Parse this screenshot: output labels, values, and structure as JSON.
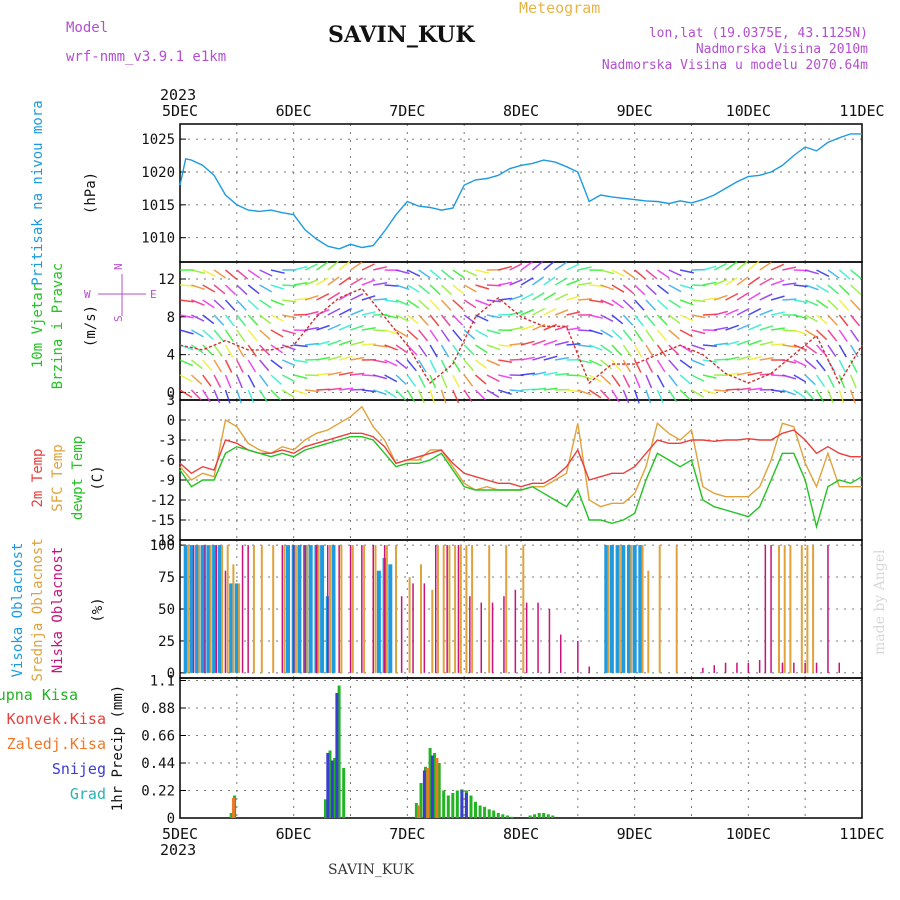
{
  "header": {
    "model_label": "Model",
    "model_name": "wrf-nmm_v3.9.1  e1km",
    "station": "SAVIN_KUK",
    "kind": "Meteogram",
    "lonlat": "lon,lat (19.0375E, 43.1125N)",
    "elevation": "Nadmorska Visina 2010m",
    "model_elevation": "Nadmorska Visina u modelu 2070.64m",
    "footer_station": "SAVIN_KUK",
    "watermark": "made by Angel"
  },
  "colors": {
    "pressure": "#1e9be0",
    "temp2m": "#e8403c",
    "sfc": "#e0a23c",
    "dewpt": "#22c322",
    "high_cloud": "#1e9be0",
    "mid_cloud": "#e0a23c",
    "low_cloud": "#c8127c",
    "total_precip": "#22b422",
    "conv_precip": "#e8403c",
    "frozen_precip": "#f07828",
    "snow": "#3c3cd2",
    "hail": "#28b4b4",
    "grid": "#777777",
    "header_purple": "#b44fd0",
    "header_gold": "#e8b44a"
  },
  "chart_data": [
    {
      "id": "pressure",
      "type": "line",
      "ylabel_lines": [
        "Pritisak na nivou mora",
        "(hPa)"
      ],
      "x_ticks": [
        "5DEC",
        "6DEC",
        "7DEC",
        "8DEC",
        "9DEC",
        "10DEC",
        "11DEC"
      ],
      "top_year": "2023",
      "bottom_year": "2023",
      "yticks": [
        1010,
        1015,
        1020,
        1025
      ],
      "ylim": [
        1006.3,
        1027.3
      ],
      "xlim_days": [
        0,
        6
      ],
      "series": [
        {
          "x": [
            0,
            0.05,
            0.1,
            0.2,
            0.3,
            0.4,
            0.5,
            0.6,
            0.7,
            0.8,
            0.9,
            1.0,
            1.1,
            1.2,
            1.3,
            1.4,
            1.5,
            1.6,
            1.7,
            1.8,
            1.9,
            2.0,
            2.1,
            2.2,
            2.3,
            2.4,
            2.5,
            2.6,
            2.7,
            2.8,
            2.9,
            3.0,
            3.1,
            3.2,
            3.3,
            3.4,
            3.5,
            3.6,
            3.7,
            3.8,
            3.9,
            4.0,
            4.1,
            4.2,
            4.3,
            4.4,
            4.5,
            4.6,
            4.7,
            4.8,
            4.9,
            5.0,
            5.1,
            5.2,
            5.3,
            5.4,
            5.5,
            5.6,
            5.7,
            5.8,
            5.9,
            6.0
          ],
          "y": [
            1018,
            1022,
            1021.8,
            1021,
            1019.5,
            1016.5,
            1015,
            1014.2,
            1014,
            1014.2,
            1013.8,
            1013.5,
            1011.2,
            1009.8,
            1008.7,
            1008.3,
            1009,
            1008.5,
            1008.8,
            1011,
            1013.5,
            1015.5,
            1014.8,
            1014.6,
            1014.2,
            1014.5,
            1018,
            1018.8,
            1019,
            1019.5,
            1020.5,
            1021,
            1021.3,
            1021.8,
            1021.5,
            1020.8,
            1020,
            1015.5,
            1016.5,
            1016.2,
            1016,
            1015.8,
            1015.6,
            1015.5,
            1015.2,
            1015.6,
            1015.3,
            1015.8,
            1016.5,
            1017.5,
            1018.5,
            1019.3,
            1019.5,
            1020,
            1021,
            1022.5,
            1023.8,
            1023.2,
            1024.5,
            1025.2,
            1025.8,
            1025.8
          ]
        }
      ]
    },
    {
      "id": "wind",
      "type": "line",
      "ylabel_lines": [
        "10m Vjetar",
        "Brzina i Pravac",
        "(m/s)"
      ],
      "compass": {
        "n": "N",
        "s": "S",
        "w": "W",
        "e": "E"
      },
      "yticks": [
        0,
        4,
        8,
        12
      ],
      "ylim": [
        -0.8,
        13.8
      ],
      "xlim_days": [
        0,
        6
      ],
      "series": [
        {
          "name": "",
          "x": [
            0,
            0.2,
            0.4,
            0.6,
            0.8,
            1.0,
            1.2,
            1.4,
            1.6,
            1.8,
            2.0,
            2.2,
            2.4,
            2.6,
            2.8,
            3.0,
            3.2,
            3.4,
            3.6,
            3.8,
            4.0,
            4.2,
            4.4,
            4.6,
            4.8,
            5.0,
            5.2,
            5.4,
            5.6,
            5.8,
            6.0
          ],
          "y": [
            5,
            4.5,
            5.5,
            4.5,
            4.5,
            5,
            8,
            10,
            11,
            8,
            5,
            1,
            3,
            8,
            10,
            8,
            7,
            7,
            1,
            3,
            3,
            4,
            5,
            4,
            2,
            1,
            2,
            4,
            6,
            1,
            5
          ]
        }
      ]
    },
    {
      "id": "temperature",
      "type": "line",
      "ylabel_lines": [
        "2m Temp",
        "SFC Temp",
        "dewpt Temp",
        "(C)"
      ],
      "yticks": [
        3,
        0,
        -3,
        -6,
        -9,
        -12,
        -15,
        -18
      ],
      "ylim": [
        -18,
        3
      ],
      "xlim_days": [
        0,
        6
      ],
      "series": [
        {
          "name": "2m Temp",
          "x": [
            0,
            0.1,
            0.2,
            0.3,
            0.4,
            0.5,
            0.6,
            0.7,
            0.8,
            0.9,
            1.0,
            1.1,
            1.2,
            1.3,
            1.4,
            1.5,
            1.6,
            1.7,
            1.8,
            1.9,
            2.0,
            2.1,
            2.2,
            2.3,
            2.4,
            2.5,
            2.6,
            2.7,
            2.8,
            2.9,
            3.0,
            3.1,
            3.2,
            3.3,
            3.4,
            3.5,
            3.6,
            3.7,
            3.8,
            3.9,
            4.0,
            4.1,
            4.2,
            4.3,
            4.4,
            4.5,
            4.6,
            4.7,
            4.8,
            4.9,
            5.0,
            5.1,
            5.2,
            5.3,
            5.4,
            5.5,
            5.6,
            5.7,
            5.8,
            5.9,
            6.0
          ],
          "y": [
            -6.5,
            -8,
            -7,
            -7.5,
            -3,
            -3.5,
            -4.5,
            -5,
            -5,
            -4.5,
            -5,
            -4,
            -3.5,
            -3,
            -2.5,
            -2,
            -2,
            -2.5,
            -4,
            -6.5,
            -6,
            -5.5,
            -5,
            -4.5,
            -6.5,
            -8,
            -8.5,
            -9,
            -9.5,
            -9.5,
            -10,
            -9.5,
            -9.5,
            -8.5,
            -7,
            -4.5,
            -9,
            -8.5,
            -8,
            -8,
            -7,
            -5,
            -3,
            -3.5,
            -3.5,
            -3,
            -3,
            -3.2,
            -3,
            -3,
            -2.8,
            -3,
            -3,
            -2,
            -1.5,
            -3,
            -5,
            -4,
            -5,
            -5.5,
            -5.5
          ]
        },
        {
          "name": "SFC Temp",
          "x": [
            0,
            0.1,
            0.2,
            0.3,
            0.4,
            0.5,
            0.6,
            0.7,
            0.8,
            0.9,
            1.0,
            1.1,
            1.2,
            1.3,
            1.4,
            1.5,
            1.6,
            1.7,
            1.8,
            1.9,
            2.0,
            2.1,
            2.2,
            2.3,
            2.4,
            2.5,
            2.6,
            2.7,
            2.8,
            2.9,
            3.0,
            3.1,
            3.2,
            3.3,
            3.4,
            3.5,
            3.6,
            3.7,
            3.8,
            3.9,
            4.0,
            4.1,
            4.2,
            4.3,
            4.4,
            4.5,
            4.6,
            4.7,
            4.8,
            4.9,
            5.0,
            5.1,
            5.2,
            5.3,
            5.4,
            5.5,
            5.6,
            5.7,
            5.8,
            5.9,
            6.0
          ],
          "y": [
            -7,
            -9,
            -8,
            -8.5,
            0,
            -1,
            -3.5,
            -4.5,
            -5,
            -4,
            -4.5,
            -3,
            -2,
            -1.5,
            -0.5,
            0.5,
            2,
            -1,
            -3,
            -6.5,
            -6,
            -6,
            -4.5,
            -4.5,
            -7,
            -9.5,
            -10.5,
            -10,
            -10.5,
            -10.5,
            -10.5,
            -10,
            -10,
            -9,
            -8,
            -0.5,
            -12,
            -13,
            -12.5,
            -12.5,
            -11,
            -7,
            -0.5,
            -2,
            -3,
            -1.5,
            -10,
            -11,
            -11.5,
            -11.5,
            -11.5,
            -10,
            -6,
            -0.5,
            -1,
            -6.5,
            -10,
            -5,
            -10,
            -10,
            -10
          ]
        },
        {
          "name": "dewpt Temp",
          "x": [
            0,
            0.1,
            0.2,
            0.3,
            0.4,
            0.5,
            0.6,
            0.7,
            0.8,
            0.9,
            1.0,
            1.1,
            1.2,
            1.3,
            1.4,
            1.5,
            1.6,
            1.7,
            1.8,
            1.9,
            2.0,
            2.1,
            2.2,
            2.3,
            2.4,
            2.5,
            2.6,
            2.7,
            2.8,
            2.9,
            3.0,
            3.1,
            3.2,
            3.3,
            3.4,
            3.5,
            3.6,
            3.7,
            3.8,
            3.9,
            4.0,
            4.1,
            4.2,
            4.3,
            4.4,
            4.5,
            4.6,
            4.7,
            4.8,
            4.9,
            5.0,
            5.1,
            5.2,
            5.3,
            5.4,
            5.5,
            5.6,
            5.7,
            5.8,
            5.9,
            6.0
          ],
          "y": [
            -7.5,
            -10,
            -9,
            -9,
            -5,
            -4,
            -4.5,
            -5,
            -5.5,
            -5,
            -5.5,
            -4.5,
            -4,
            -3.5,
            -3,
            -2.5,
            -2.5,
            -3,
            -5,
            -7,
            -6.5,
            -6.5,
            -6,
            -5,
            -7.5,
            -10,
            -10.5,
            -10.5,
            -10.5,
            -10.5,
            -10.5,
            -10,
            -11,
            -12,
            -13,
            -10.5,
            -15,
            -15,
            -15.5,
            -15,
            -14,
            -9,
            -5,
            -6,
            -7,
            -6,
            -12,
            -13,
            -13.5,
            -14,
            -14.5,
            -13,
            -9,
            -5,
            -5,
            -9,
            -16,
            -10,
            -9,
            -9.5,
            -8.5
          ]
        }
      ]
    },
    {
      "id": "cloud",
      "type": "bar",
      "ylabel_lines": [
        "Visoka Oblacnost",
        "Srednja Oblacnost",
        "Niska Oblacnost",
        "(%)"
      ],
      "yticks": [
        0,
        25,
        50,
        75,
        100
      ],
      "ylim": [
        -4,
        104
      ],
      "xlim_days": [
        0,
        6
      ],
      "series": [
        {
          "name": "Visoka Oblacnost",
          "x": [
            0.05,
            0.1,
            0.15,
            0.2,
            0.25,
            0.3,
            0.35,
            0.45,
            0.5,
            0.95,
            1.0,
            1.05,
            1.1,
            1.15,
            1.2,
            1.25,
            1.3,
            1.35,
            1.75,
            1.8,
            1.85,
            3.75,
            3.8,
            3.85,
            3.9,
            3.95,
            4.0,
            4.05
          ],
          "y": [
            100,
            100,
            100,
            100,
            100,
            100,
            100,
            70,
            70,
            100,
            100,
            100,
            100,
            100,
            100,
            100,
            60,
            100,
            80,
            90,
            85,
            100,
            100,
            100,
            100,
            100,
            100,
            100
          ]
        },
        {
          "name": "Srednja Oblacnost",
          "x": [
            0.07,
            0.17,
            0.27,
            0.37,
            0.42,
            0.47,
            0.52,
            0.65,
            0.72,
            0.82,
            0.92,
            1.02,
            1.12,
            1.22,
            1.32,
            1.42,
            1.52,
            1.62,
            1.72,
            1.82,
            1.9,
            2.02,
            2.12,
            2.22,
            2.27,
            2.32,
            2.37,
            2.42,
            2.47,
            2.52,
            2.57,
            2.72,
            2.87,
            3.02,
            3.77,
            3.87,
            3.97,
            4.07,
            4.12,
            4.22,
            4.37,
            5.27,
            5.32,
            5.37,
            5.47,
            5.52,
            5.57
          ],
          "y": [
            100,
            100,
            100,
            100,
            100,
            85,
            70,
            100,
            100,
            100,
            100,
            100,
            100,
            100,
            100,
            100,
            100,
            100,
            100,
            100,
            100,
            75,
            85,
            65,
            100,
            100,
            100,
            100,
            100,
            100,
            100,
            100,
            100,
            100,
            100,
            100,
            100,
            100,
            80,
            100,
            100,
            100,
            100,
            100,
            100,
            100,
            100
          ]
        },
        {
          "name": "Niska Oblacnost",
          "x": [
            0.12,
            0.22,
            0.32,
            0.4,
            0.55,
            0.6,
            0.9,
            1.0,
            1.1,
            1.2,
            1.3,
            1.4,
            1.5,
            1.6,
            1.7,
            1.8,
            1.95,
            2.05,
            2.15,
            2.25,
            2.35,
            2.45,
            2.55,
            2.65,
            2.75,
            2.85,
            2.95,
            3.05,
            3.15,
            3.25,
            3.35,
            3.5,
            3.6,
            4.6,
            4.7,
            4.8,
            4.9,
            5.0,
            5.1,
            5.15,
            5.2,
            5.3,
            5.4,
            5.5,
            5.6,
            5.7,
            5.8
          ],
          "y": [
            100,
            100,
            100,
            80,
            100,
            100,
            100,
            100,
            100,
            100,
            100,
            100,
            100,
            100,
            100,
            100,
            60,
            70,
            70,
            100,
            100,
            100,
            60,
            55,
            55,
            60,
            65,
            55,
            55,
            50,
            30,
            25,
            5,
            4,
            6,
            8,
            8,
            8,
            10,
            100,
            100,
            8,
            8,
            8,
            8,
            100,
            8
          ]
        }
      ]
    },
    {
      "id": "precip",
      "type": "bar",
      "ylabel_lines": [
        "1hr Precip (mm)"
      ],
      "legend_entries": [
        "Ukupna Kisa",
        "Konvek.Kisa",
        "Zaledj.Kisa",
        "Snijeg",
        "Grad"
      ],
      "yticks": [
        0,
        0.22,
        0.44,
        0.66,
        0.88,
        1.1
      ],
      "ylim": [
        0,
        1.12
      ],
      "xlim_days": [
        0,
        6
      ],
      "series": [
        {
          "name": "Ukupna Kisa",
          "x": [
            0.45,
            0.48,
            1.28,
            1.32,
            1.36,
            1.4,
            1.44,
            2.08,
            2.12,
            2.16,
            2.2,
            2.24,
            2.28,
            2.32,
            2.36,
            2.4,
            2.44,
            2.48,
            2.52,
            2.56,
            2.6,
            2.64,
            2.68,
            2.72,
            2.76,
            2.8,
            2.84,
            2.88,
            2.92,
            3.08,
            3.12,
            3.16,
            3.2,
            3.24,
            3.28
          ],
          "y": [
            0.04,
            0.18,
            0.15,
            0.54,
            0.48,
            1.06,
            0.4,
            0.12,
            0.28,
            0.41,
            0.56,
            0.52,
            0.44,
            0.22,
            0.18,
            0.2,
            0.22,
            0.23,
            0.22,
            0.18,
            0.13,
            0.1,
            0.09,
            0.07,
            0.06,
            0.04,
            0.03,
            0.02,
            0.01,
            0.02,
            0.03,
            0.04,
            0.04,
            0.03,
            0.02
          ]
        },
        {
          "name": "Snijeg",
          "x": [
            1.3,
            1.34,
            1.38,
            2.15,
            2.22,
            2.48,
            2.52
          ],
          "y": [
            0.52,
            0.46,
            1.0,
            0.38,
            0.5,
            0.22,
            0.2
          ]
        },
        {
          "name": "Zaledj.Kisa",
          "x": [
            0.47,
            2.1,
            2.18,
            2.26
          ],
          "y": [
            0.16,
            0.1,
            0.4,
            0.48
          ]
        }
      ]
    }
  ]
}
